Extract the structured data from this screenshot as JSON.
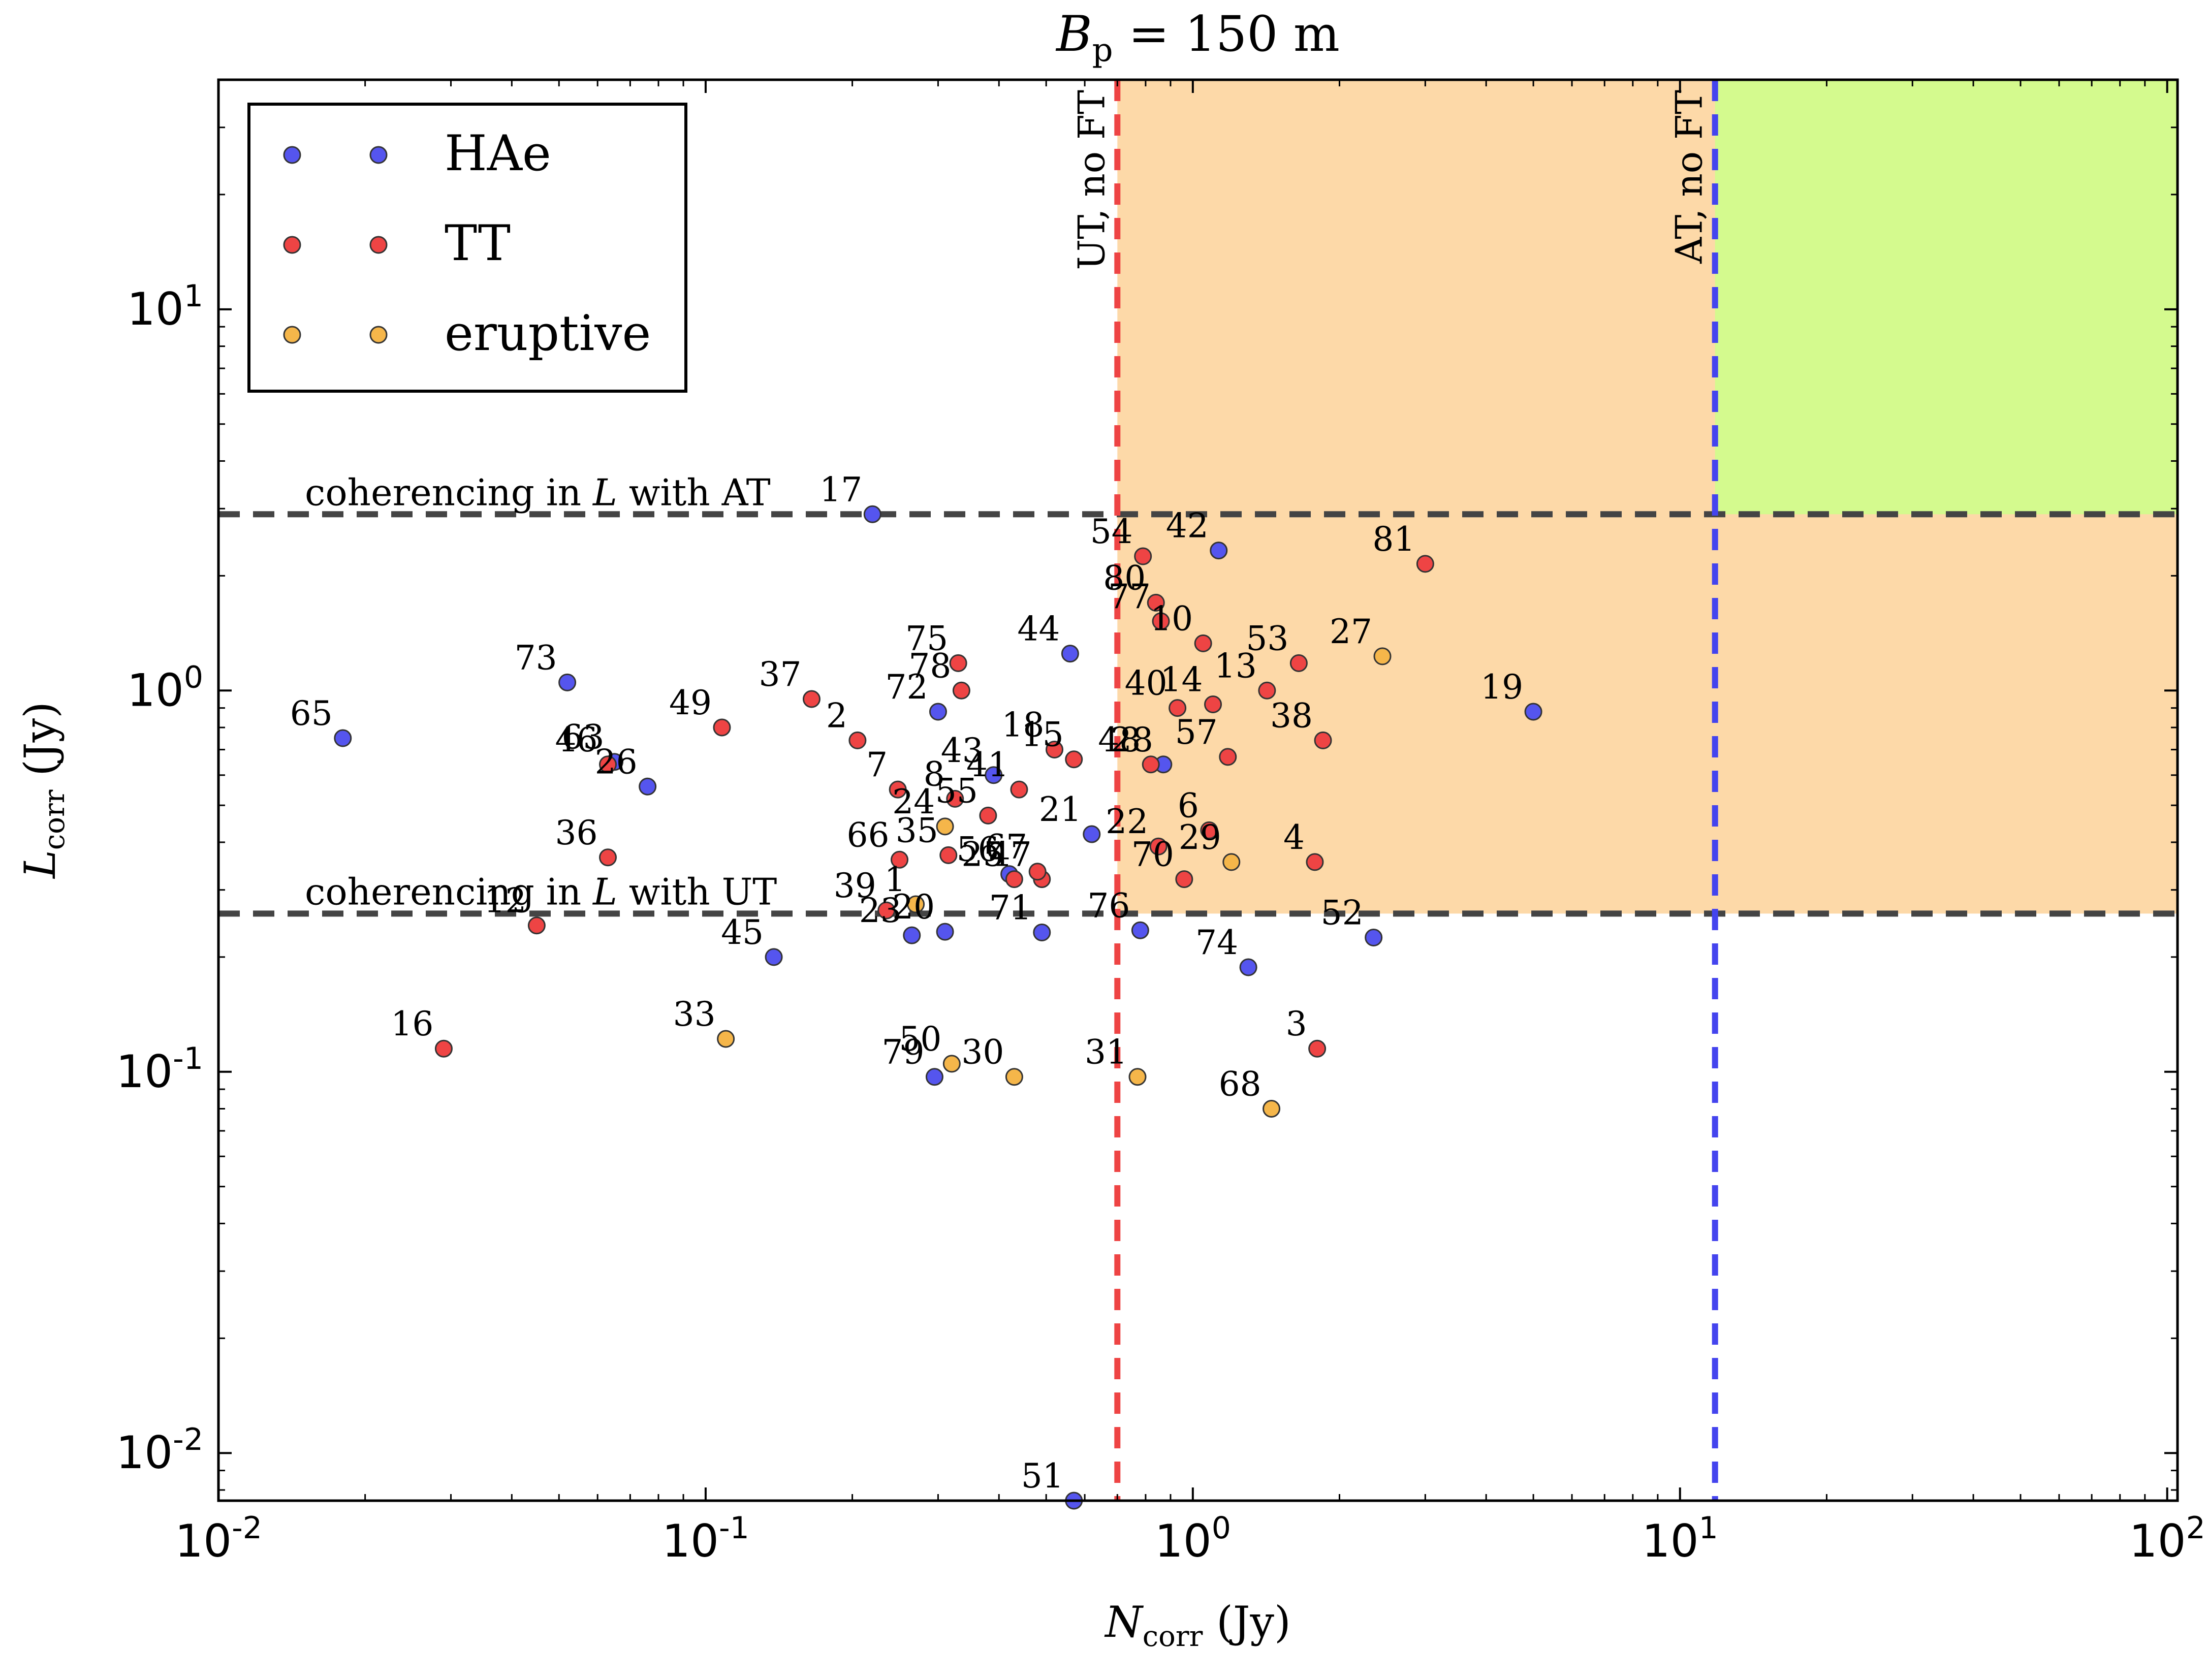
{
  "chart_data": {
    "type": "scatter",
    "title": "B_p = 150 m",
    "title_parts": {
      "main": "B",
      "sub": "p",
      "rest": " = 150 m"
    },
    "xlabel": "N_corr (Jy)",
    "xlabel_parts": {
      "main": "N",
      "sub": "corr",
      "rest": " (Jy)"
    },
    "ylabel": "L_corr (Jy)",
    "ylabel_parts": {
      "main": "L",
      "sub": "corr",
      "rest": " (Jy)"
    },
    "x_scale": "log",
    "y_scale": "log",
    "xlim": [
      0.01,
      105
    ],
    "ylim": [
      0.0075,
      40
    ],
    "x_ticks": [
      0.01,
      0.1,
      1,
      10,
      100
    ],
    "x_tick_labels": [
      {
        "b": "10",
        "e": "-2"
      },
      {
        "b": "10",
        "e": "-1"
      },
      {
        "b": "10",
        "e": "0"
      },
      {
        "b": "10",
        "e": "1"
      },
      {
        "b": "10",
        "e": "2"
      }
    ],
    "y_ticks": [
      0.01,
      0.1,
      1,
      10
    ],
    "y_tick_labels": [
      {
        "b": "10",
        "e": "-2"
      },
      {
        "b": "10",
        "e": "-1"
      },
      {
        "b": "10",
        "e": "0"
      },
      {
        "b": "10",
        "e": "1"
      }
    ],
    "grid": false,
    "legend_position": "top-left",
    "legend": [
      {
        "label": "HAe",
        "color": "#5555ee"
      },
      {
        "label": "TT",
        "color": "#ee4444"
      },
      {
        "label": "eruptive",
        "color": "#f5b64a"
      }
    ],
    "regions": [
      {
        "x": [
          0.7,
          105
        ],
        "y": [
          0.26,
          40
        ],
        "color": "#fdd9a8"
      },
      {
        "x": [
          11.8,
          105
        ],
        "y": [
          2.9,
          40
        ],
        "color": "#d4fa8e"
      }
    ],
    "threshold_lines": [
      {
        "orientation": "horizontal",
        "value": 2.9,
        "color": "#444444",
        "label": "coherencing in L with AT",
        "label_parts": {
          "pre": "coherencing in ",
          "var": "L",
          "post": " with AT"
        }
      },
      {
        "orientation": "horizontal",
        "value": 0.26,
        "color": "#444444",
        "label": "coherencing in L with UT",
        "label_parts": {
          "pre": "coherencing in ",
          "var": "L",
          "post": " with UT"
        }
      },
      {
        "orientation": "vertical",
        "value": 0.7,
        "color": "#ee4444",
        "label": "UT, no FT"
      },
      {
        "orientation": "vertical",
        "value": 11.8,
        "color": "#4444ee",
        "label": "AT, no FT"
      }
    ],
    "series": [
      {
        "name": "HAe",
        "color": "#5555ee",
        "points": [
          {
            "id": "65",
            "x": 0.018,
            "y": 0.75
          },
          {
            "id": "73",
            "x": 0.052,
            "y": 1.05
          },
          {
            "id": "63",
            "x": 0.065,
            "y": 0.65
          },
          {
            "id": "26",
            "x": 0.076,
            "y": 0.56
          },
          {
            "id": "17",
            "x": 0.22,
            "y": 2.9
          },
          {
            "id": "72",
            "x": 0.3,
            "y": 0.88
          },
          {
            "id": "43",
            "x": 0.39,
            "y": 0.6
          },
          {
            "id": "45",
            "x": 0.138,
            "y": 0.2
          },
          {
            "id": "23",
            "x": 0.265,
            "y": 0.228
          },
          {
            "id": "20",
            "x": 0.31,
            "y": 0.233
          },
          {
            "id": "71",
            "x": 0.49,
            "y": 0.232
          },
          {
            "id": "79",
            "x": 0.295,
            "y": 0.097
          },
          {
            "id": "44",
            "x": 0.56,
            "y": 1.25
          },
          {
            "id": "21",
            "x": 0.62,
            "y": 0.42
          },
          {
            "id": "56",
            "x": 0.42,
            "y": 0.33
          },
          {
            "id": "42",
            "x": 1.13,
            "y": 2.33
          },
          {
            "id": "28",
            "x": 0.87,
            "y": 0.64
          },
          {
            "id": "19",
            "x": 5.0,
            "y": 0.88
          },
          {
            "id": "76",
            "x": 0.78,
            "y": 0.235
          },
          {
            "id": "74",
            "x": 1.3,
            "y": 0.188
          },
          {
            "id": "52",
            "x": 2.35,
            "y": 0.225
          },
          {
            "id": "51",
            "x": 0.57,
            "y": 0.0075
          }
        ]
      },
      {
        "name": "TT",
        "color": "#ee4444",
        "points": [
          {
            "id": "46",
            "x": 0.063,
            "y": 0.64
          },
          {
            "id": "49",
            "x": 0.108,
            "y": 0.8
          },
          {
            "id": "37",
            "x": 0.165,
            "y": 0.95
          },
          {
            "id": "2",
            "x": 0.205,
            "y": 0.74
          },
          {
            "id": "7",
            "x": 0.248,
            "y": 0.55
          },
          {
            "id": "36",
            "x": 0.063,
            "y": 0.365
          },
          {
            "id": "12",
            "x": 0.045,
            "y": 0.242
          },
          {
            "id": "16",
            "x": 0.029,
            "y": 0.115
          },
          {
            "id": "66",
            "x": 0.25,
            "y": 0.36
          },
          {
            "id": "39",
            "x": 0.235,
            "y": 0.265
          },
          {
            "id": "75",
            "x": 0.33,
            "y": 1.18
          },
          {
            "id": "78",
            "x": 0.335,
            "y": 1.0
          },
          {
            "id": "8",
            "x": 0.325,
            "y": 0.52
          },
          {
            "id": "55",
            "x": 0.38,
            "y": 0.47
          },
          {
            "id": "35",
            "x": 0.315,
            "y": 0.37
          },
          {
            "id": "41",
            "x": 0.44,
            "y": 0.55
          },
          {
            "id": "47",
            "x": 0.49,
            "y": 0.32
          },
          {
            "id": "25",
            "x": 0.43,
            "y": 0.32
          },
          {
            "id": "67",
            "x": 0.48,
            "y": 0.335
          },
          {
            "id": "18",
            "x": 0.52,
            "y": 0.7
          },
          {
            "id": "15",
            "x": 0.57,
            "y": 0.66
          },
          {
            "id": "54",
            "x": 0.79,
            "y": 2.25
          },
          {
            "id": "80",
            "x": 0.84,
            "y": 1.7
          },
          {
            "id": "77",
            "x": 0.86,
            "y": 1.52
          },
          {
            "id": "10",
            "x": 1.05,
            "y": 1.33
          },
          {
            "id": "53",
            "x": 1.65,
            "y": 1.18
          },
          {
            "id": "81",
            "x": 3.0,
            "y": 2.15
          },
          {
            "id": "40",
            "x": 0.93,
            "y": 0.9
          },
          {
            "id": "14",
            "x": 1.1,
            "y": 0.92
          },
          {
            "id": "13",
            "x": 1.42,
            "y": 1.0
          },
          {
            "id": "38",
            "x": 1.85,
            "y": 0.74
          },
          {
            "id": "57",
            "x": 1.18,
            "y": 0.67
          },
          {
            "id": "48",
            "x": 0.82,
            "y": 0.64
          },
          {
            "id": "6",
            "x": 1.08,
            "y": 0.43
          },
          {
            "id": "22",
            "x": 0.85,
            "y": 0.39
          },
          {
            "id": "70",
            "x": 0.96,
            "y": 0.32
          },
          {
            "id": "4",
            "x": 1.78,
            "y": 0.355
          },
          {
            "id": "3",
            "x": 1.8,
            "y": 0.115
          }
        ]
      },
      {
        "name": "eruptive",
        "color": "#f5b64a",
        "points": [
          {
            "id": "33",
            "x": 0.11,
            "y": 0.122
          },
          {
            "id": "1",
            "x": 0.27,
            "y": 0.275
          },
          {
            "id": "24",
            "x": 0.31,
            "y": 0.44
          },
          {
            "id": "50",
            "x": 0.32,
            "y": 0.105
          },
          {
            "id": "30",
            "x": 0.43,
            "y": 0.097
          },
          {
            "id": "31",
            "x": 0.77,
            "y": 0.097
          },
          {
            "id": "29",
            "x": 1.2,
            "y": 0.355
          },
          {
            "id": "68",
            "x": 1.45,
            "y": 0.08
          },
          {
            "id": "27",
            "x": 2.45,
            "y": 1.23
          }
        ]
      }
    ]
  }
}
